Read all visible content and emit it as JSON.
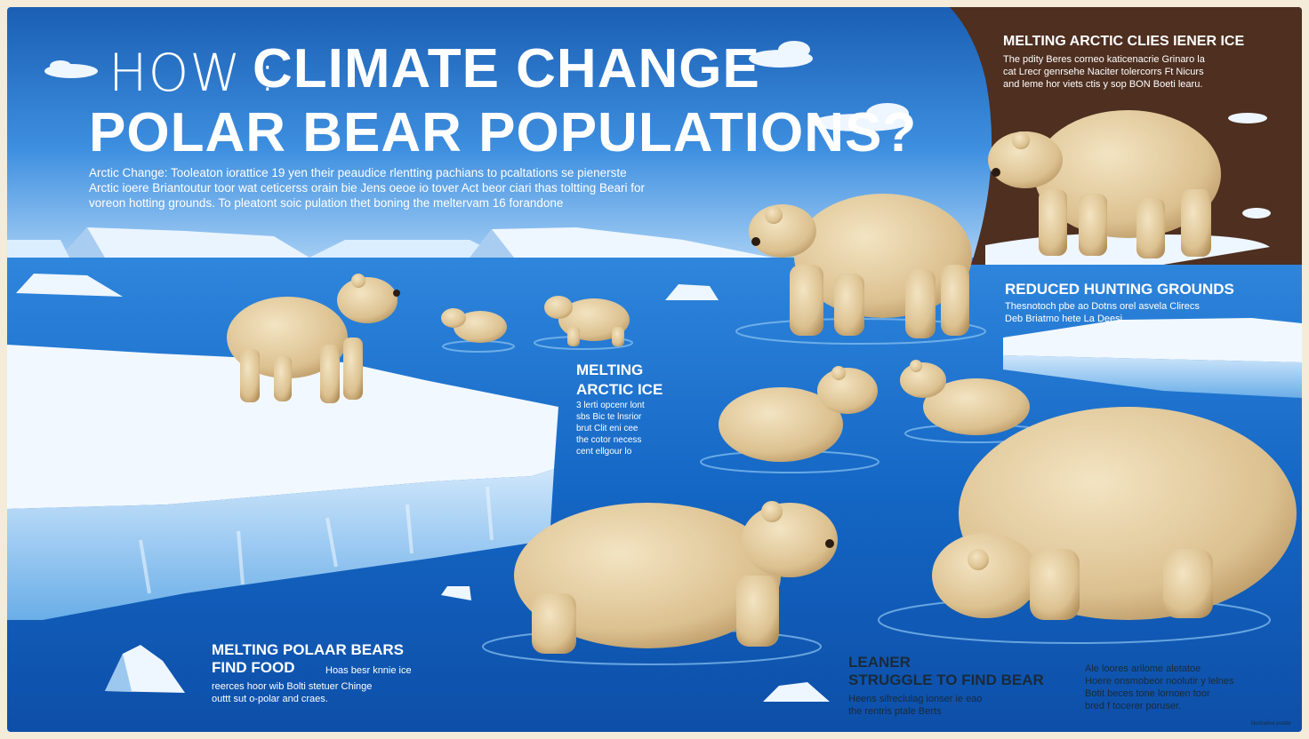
{
  "headline": {
    "word1": "HOW :",
    "line1_rest": "CLIMATE CHANGE",
    "line2": "POLAR BEAR POPULATIONS?"
  },
  "intro": "Arctic Change: Tooleaton iorattice 19 yen their peaudice rlentting pachians to pcaltations se pienerste\nArctic ioere Briantoutur toor wat ceticerss orain bie Jens oeoe io tover Act beor ciari thas toltting Beari for\nvoreon hotting grounds. To pleatont soic pulation thet boning the meltervam 16 forandone",
  "panels": {
    "top_right": {
      "title": "MELTING ARCTIC CLIES IENER ICE",
      "body": "The pdity Beres corneo katicenacrie Grinaro la\ncat Lrecr genrsehe Naciter tolercorrs Ft Nicurs\nand leme hor viets ctis y sop BON Boeti learu."
    },
    "reduced": {
      "title": "REDUCED HUNTING GROUNDS",
      "body": "Thesnotoch pbe ao Dotns orel asvela Clirecs\nDeb Briatmo hete La Deesi..."
    },
    "melting_ice": {
      "title": "MELTING\nARCTIC ICE",
      "body": "3 lerti opcenr lont\nsbs Bic te lnsrior\nbrut Clit eni cee\nthe cotor necess\ncent ellgour lo"
    },
    "find_food": {
      "title": "MELTING POLAAR BEARS\nFIND FOOD",
      "inline": "Hoas besr knnie ice",
      "body": "reerces hoor wib Bolti stetuer Chinge\nouttt sut o-polar and craes."
    },
    "leaner": {
      "title": "LEANER\nSTRUGGLE TO FIND BEAR",
      "body": "Heens sifreciulag ionser ie eao\nthe rentris ptale Berts"
    },
    "bottom_right": {
      "body": "Ale loores arilome aletatoe\nHoere onsmobeor noolutir y lelnes\nBotit beces tone lornoen toor\nbred f tocerer poruser."
    }
  },
  "credit": "illustrative poster",
  "icons": [
    "polar-bear",
    "iceberg",
    "cloud",
    "ice-floe"
  ],
  "colors": {
    "ocean_deep": "#0d4fa8",
    "ocean_light": "#3a8ee0",
    "sky": "#7fb6ef",
    "ice": "#eef6ff",
    "ice_shadow": "#9cc8f0",
    "fur": "#e6d2a8",
    "fur_shadow": "#bc9c6c",
    "brown_panel": "#4e2f20",
    "cream_frame": "#f4ecd8"
  }
}
